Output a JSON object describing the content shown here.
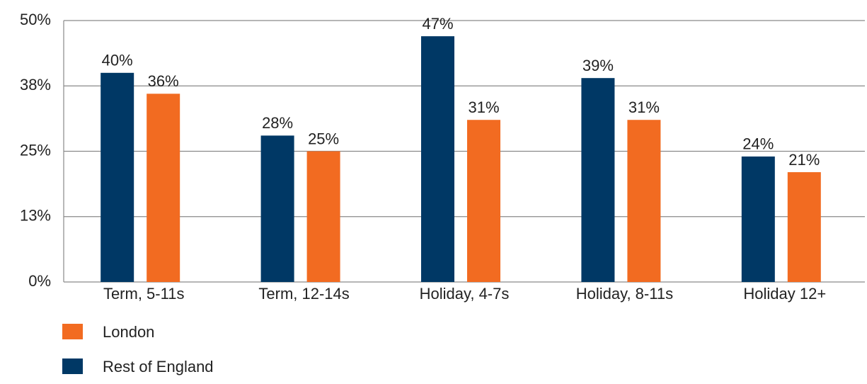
{
  "chart_data": {
    "type": "bar",
    "categories": [
      "Term, 5-11s",
      "Term, 12-14s",
      "Holiday, 4-7s",
      "Holiday, 8-11s",
      "Holiday 12+"
    ],
    "series": [
      {
        "name": "Rest of England",
        "color": "#003865",
        "values": [
          40,
          28,
          47,
          39,
          24
        ],
        "value_labels": [
          "40%",
          "28%",
          "47%",
          "39%",
          "24%"
        ]
      },
      {
        "name": "London",
        "color": "#f26b21",
        "values": [
          36,
          25,
          31,
          31,
          21
        ],
        "value_labels": [
          "36%",
          "25%",
          "31%",
          "31%",
          "21%"
        ]
      }
    ],
    "ylim": [
      0,
      50
    ],
    "yticks": [
      {
        "value": 0,
        "label": "0%"
      },
      {
        "value": 12.5,
        "label": "13%"
      },
      {
        "value": 25,
        "label": "25%"
      },
      {
        "value": 37.5,
        "label": "38%"
      },
      {
        "value": 50,
        "label": "50%"
      }
    ],
    "grid": true
  }
}
